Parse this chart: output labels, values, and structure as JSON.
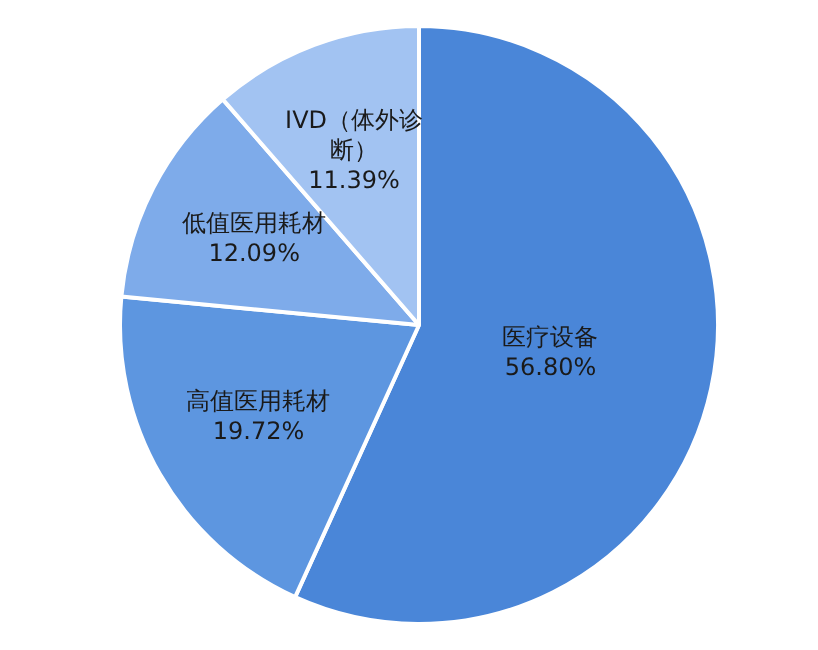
{
  "chart_data": {
    "type": "pie",
    "categories": [
      "医疗设备",
      "高值医用耗材",
      "低值医用耗材",
      "IVD（体外诊断）"
    ],
    "values": [
      56.8,
      19.72,
      12.09,
      11.39
    ],
    "colors": [
      "#4a86d8",
      "#5d96e0",
      "#7eabea",
      "#a2c3f2"
    ],
    "value_labels": [
      "56.80%",
      "19.72%",
      "12.09%",
      "11.39%"
    ],
    "legend": false
  }
}
